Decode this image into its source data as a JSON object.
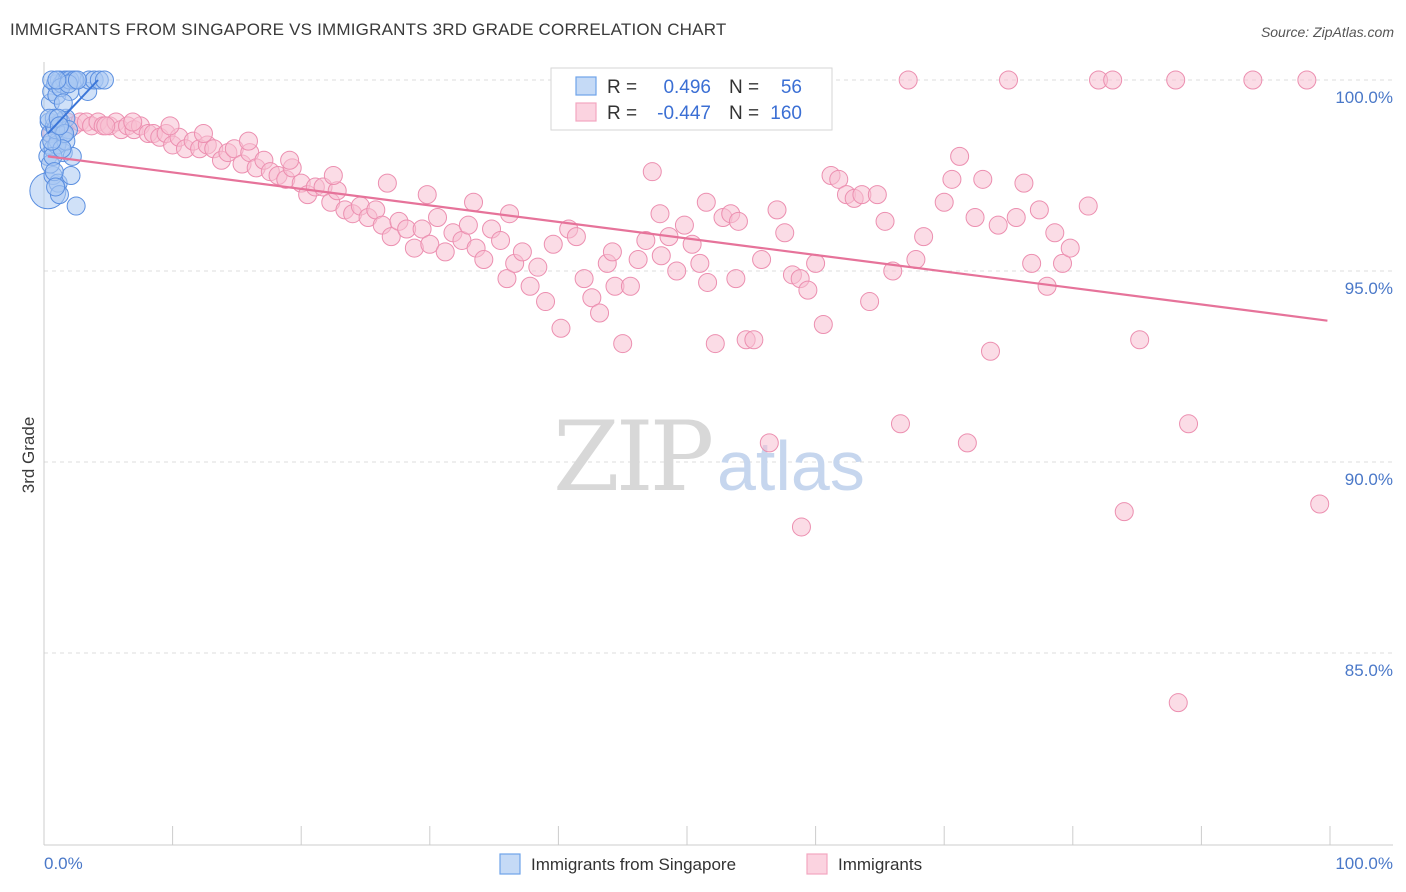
{
  "title": "IMMIGRANTS FROM SINGAPORE VS IMMIGRANTS 3RD GRADE CORRELATION CHART",
  "source": "Source: ZipAtlas.com",
  "watermark": {
    "part1": "ZIP",
    "part2": "atlas"
  },
  "colors": {
    "blue": "#6fa3ea",
    "blue_line": "#3a75d8",
    "pink": "#f3a6c0",
    "pink_line": "#e6739a",
    "tick": "#4a78c8"
  },
  "stats_box": {
    "rows": [
      {
        "r_label": "R =",
        "r_value": "0.496",
        "n_label": "N =",
        "n_value": "56"
      },
      {
        "r_label": "R =",
        "r_value": "-0.447",
        "n_label": "N =",
        "n_value": "160"
      }
    ]
  },
  "chart_data": {
    "type": "scatter",
    "title": "IMMIGRANTS FROM SINGAPORE VS IMMIGRANTS 3RD GRADE CORRELATION CHART",
    "xlabel": "",
    "ylabel": "3rd Grade",
    "xlim": [
      0,
      100
    ],
    "ylim": [
      80.7,
      100.7
    ],
    "x_tick_labels": [
      "0.0%",
      "100.0%"
    ],
    "y_ticks": [
      85,
      90,
      95,
      100
    ],
    "y_tick_labels": [
      "85.0%",
      "90.0%",
      "95.0%",
      "100.0%"
    ],
    "grid": true,
    "legend_position": "bottom-center",
    "series": [
      {
        "name": "Immigrants from Singapore",
        "color": "#6fa3ea",
        "trend": [
          [
            0.3,
            98.6
          ],
          [
            4.2,
            100.0
          ]
        ],
        "points": [
          [
            0.3,
            97.1,
            2
          ],
          [
            0.3,
            98.0,
            1
          ],
          [
            0.4,
            98.3,
            1
          ],
          [
            0.4,
            98.9,
            1
          ],
          [
            0.5,
            98.6,
            1
          ],
          [
            0.5,
            99.4,
            1
          ],
          [
            0.6,
            99.7,
            1
          ],
          [
            0.7,
            97.5,
            1
          ],
          [
            0.7,
            98.2,
            1
          ],
          [
            0.8,
            98.8,
            1
          ],
          [
            0.9,
            99.9,
            1
          ],
          [
            1.0,
            99.6,
            1
          ],
          [
            1.1,
            98.4,
            1
          ],
          [
            1.1,
            97.3,
            1
          ],
          [
            1.2,
            100.0,
            1
          ],
          [
            1.3,
            98.9,
            1
          ],
          [
            1.4,
            99.9,
            1
          ],
          [
            1.5,
            98.1,
            1
          ],
          [
            1.5,
            98.6,
            1
          ],
          [
            1.6,
            100.0,
            1
          ],
          [
            1.7,
            99.0,
            1
          ],
          [
            1.8,
            100.0,
            1
          ],
          [
            1.9,
            98.7,
            1
          ],
          [
            2.0,
            99.7,
            1
          ],
          [
            2.1,
            97.5,
            1
          ],
          [
            2.2,
            98.0,
            1
          ],
          [
            2.3,
            100.0,
            1
          ],
          [
            2.5,
            96.7,
            1
          ],
          [
            3.4,
            99.7,
            1
          ],
          [
            3.5,
            100.0,
            1
          ],
          [
            3.9,
            100.0,
            1
          ],
          [
            4.3,
            100.0,
            1
          ],
          [
            4.7,
            100.0,
            1
          ],
          [
            0.6,
            100.0,
            1
          ],
          [
            0.8,
            99.0,
            1
          ],
          [
            1.0,
            98.3,
            1
          ],
          [
            1.2,
            97.0,
            1
          ],
          [
            0.5,
            97.8,
            1
          ],
          [
            1.7,
            98.4,
            1
          ],
          [
            0.9,
            98.7,
            1
          ],
          [
            1.3,
            99.8,
            1
          ],
          [
            2.0,
            100.0,
            1
          ],
          [
            0.4,
            99.0,
            1
          ],
          [
            1.5,
            99.4,
            1
          ],
          [
            0.7,
            98.0,
            1
          ],
          [
            1.1,
            99.0,
            1
          ],
          [
            1.6,
            98.6,
            1
          ],
          [
            0.8,
            97.6,
            1
          ],
          [
            1.4,
            98.2,
            1
          ],
          [
            2.4,
            100.0,
            1
          ],
          [
            0.6,
            98.4,
            1
          ],
          [
            1.9,
            99.9,
            1
          ],
          [
            1.2,
            98.8,
            1
          ],
          [
            2.6,
            100.0,
            1
          ],
          [
            0.9,
            97.2,
            1
          ],
          [
            1.0,
            100.0,
            1
          ]
        ]
      },
      {
        "name": "Immigrants",
        "color": "#f3a6c0",
        "trend": [
          [
            0.3,
            98.0
          ],
          [
            99.8,
            93.7
          ]
        ],
        "points": [
          [
            0.6,
            98.6,
            1
          ],
          [
            1.0,
            98.8,
            1
          ],
          [
            1.4,
            98.7,
            1
          ],
          [
            1.8,
            98.9,
            1
          ],
          [
            2.3,
            98.8,
            1
          ],
          [
            2.8,
            98.9,
            1
          ],
          [
            3.3,
            98.9,
            1
          ],
          [
            3.7,
            98.8,
            1
          ],
          [
            4.2,
            98.9,
            1
          ],
          [
            4.6,
            98.8,
            1
          ],
          [
            5.1,
            98.8,
            1
          ],
          [
            5.6,
            98.9,
            1
          ],
          [
            6.0,
            98.7,
            1
          ],
          [
            6.5,
            98.8,
            1
          ],
          [
            7.0,
            98.7,
            1
          ],
          [
            7.5,
            98.8,
            1
          ],
          [
            8.1,
            98.6,
            1
          ],
          [
            8.5,
            98.6,
            1
          ],
          [
            9.0,
            98.5,
            1
          ],
          [
            9.5,
            98.6,
            1
          ],
          [
            10.0,
            98.3,
            1
          ],
          [
            10.5,
            98.5,
            1
          ],
          [
            11.0,
            98.2,
            1
          ],
          [
            11.6,
            98.4,
            1
          ],
          [
            12.1,
            98.2,
            1
          ],
          [
            12.7,
            98.3,
            1
          ],
          [
            13.2,
            98.2,
            1
          ],
          [
            13.8,
            97.9,
            1
          ],
          [
            14.3,
            98.1,
            1
          ],
          [
            14.8,
            98.2,
            1
          ],
          [
            15.4,
            97.8,
            1
          ],
          [
            16.0,
            98.1,
            1
          ],
          [
            16.5,
            97.7,
            1
          ],
          [
            17.1,
            97.9,
            1
          ],
          [
            17.6,
            97.6,
            1
          ],
          [
            18.2,
            97.5,
            1
          ],
          [
            18.8,
            97.4,
            1
          ],
          [
            19.3,
            97.7,
            1
          ],
          [
            20.0,
            97.3,
            1
          ],
          [
            20.5,
            97.0,
            1
          ],
          [
            21.1,
            97.2,
            1
          ],
          [
            21.7,
            97.2,
            1
          ],
          [
            22.3,
            96.8,
            1
          ],
          [
            22.8,
            97.1,
            1
          ],
          [
            23.4,
            96.6,
            1
          ],
          [
            24.0,
            96.5,
            1
          ],
          [
            24.6,
            96.7,
            1
          ],
          [
            25.2,
            96.4,
            1
          ],
          [
            25.8,
            96.6,
            1
          ],
          [
            26.3,
            96.2,
            1
          ],
          [
            27.0,
            95.9,
            1
          ],
          [
            27.6,
            96.3,
            1
          ],
          [
            28.2,
            96.1,
            1
          ],
          [
            28.8,
            95.6,
            1
          ],
          [
            29.4,
            96.1,
            1
          ],
          [
            30.0,
            95.7,
            1
          ],
          [
            30.6,
            96.4,
            1
          ],
          [
            31.2,
            95.5,
            1
          ],
          [
            31.8,
            96.0,
            1
          ],
          [
            32.5,
            95.8,
            1
          ],
          [
            33.0,
            96.2,
            1
          ],
          [
            33.6,
            95.6,
            1
          ],
          [
            34.2,
            95.3,
            1
          ],
          [
            34.8,
            96.1,
            1
          ],
          [
            35.5,
            95.8,
            1
          ],
          [
            36.0,
            94.8,
            1
          ],
          [
            36.6,
            95.2,
            1
          ],
          [
            37.2,
            95.5,
            1
          ],
          [
            37.8,
            94.6,
            1
          ],
          [
            38.4,
            95.1,
            1
          ],
          [
            39.0,
            94.2,
            1
          ],
          [
            39.6,
            95.7,
            1
          ],
          [
            40.2,
            93.5,
            1
          ],
          [
            40.8,
            96.1,
            1
          ],
          [
            41.4,
            95.9,
            1
          ],
          [
            42.0,
            94.8,
            1
          ],
          [
            42.6,
            94.3,
            1
          ],
          [
            43.2,
            93.9,
            1
          ],
          [
            43.8,
            95.2,
            1
          ],
          [
            44.4,
            94.6,
            1
          ],
          [
            45.0,
            93.1,
            1
          ],
          [
            45.6,
            94.6,
            1
          ],
          [
            46.2,
            95.3,
            1
          ],
          [
            46.8,
            95.8,
            1
          ],
          [
            47.3,
            97.6,
            1
          ],
          [
            48.0,
            95.4,
            1
          ],
          [
            48.6,
            95.9,
            1
          ],
          [
            49.2,
            95.0,
            1
          ],
          [
            49.8,
            96.2,
            1
          ],
          [
            50.4,
            95.7,
            1
          ],
          [
            51.0,
            95.2,
            1
          ],
          [
            51.6,
            94.7,
            1
          ],
          [
            52.2,
            93.1,
            1
          ],
          [
            52.8,
            96.4,
            1
          ],
          [
            53.4,
            96.5,
            1
          ],
          [
            54.0,
            96.3,
            1
          ],
          [
            54.6,
            93.2,
            1
          ],
          [
            55.2,
            93.2,
            1
          ],
          [
            55.8,
            95.3,
            1
          ],
          [
            56.4,
            90.5,
            1
          ],
          [
            57.0,
            96.6,
            1
          ],
          [
            57.6,
            96.0,
            1
          ],
          [
            58.2,
            94.9,
            1
          ],
          [
            58.8,
            94.8,
            1
          ],
          [
            59.4,
            94.5,
            1
          ],
          [
            60.0,
            95.2,
            1
          ],
          [
            60.6,
            93.6,
            1
          ],
          [
            61.2,
            97.5,
            1
          ],
          [
            61.8,
            97.4,
            1
          ],
          [
            62.4,
            97.0,
            1
          ],
          [
            63.0,
            96.9,
            1
          ],
          [
            63.6,
            97.0,
            1
          ],
          [
            64.2,
            94.2,
            1
          ],
          [
            64.8,
            97.0,
            1
          ],
          [
            65.4,
            96.3,
            1
          ],
          [
            66.0,
            95.0,
            1
          ],
          [
            66.6,
            91.0,
            1
          ],
          [
            67.2,
            100.0,
            1
          ],
          [
            67.8,
            95.3,
            1
          ],
          [
            68.4,
            95.9,
            1
          ],
          [
            70.0,
            96.8,
            1
          ],
          [
            70.6,
            97.4,
            1
          ],
          [
            71.2,
            98.0,
            1
          ],
          [
            71.8,
            90.5,
            1
          ],
          [
            72.4,
            96.4,
            1
          ],
          [
            73.0,
            97.4,
            1
          ],
          [
            73.6,
            92.9,
            1
          ],
          [
            74.2,
            96.2,
            1
          ],
          [
            75.0,
            100.0,
            1
          ],
          [
            75.6,
            96.4,
            1
          ],
          [
            76.2,
            97.3,
            1
          ],
          [
            76.8,
            95.2,
            1
          ],
          [
            77.4,
            96.6,
            1
          ],
          [
            78.0,
            94.6,
            1
          ],
          [
            78.6,
            96.0,
            1
          ],
          [
            79.2,
            95.2,
            1
          ],
          [
            79.8,
            95.6,
            1
          ],
          [
            81.2,
            96.7,
            1
          ],
          [
            82.0,
            100.0,
            1
          ],
          [
            83.1,
            100.0,
            1
          ],
          [
            84.0,
            88.7,
            1
          ],
          [
            85.2,
            93.2,
            1
          ],
          [
            88.0,
            100.0,
            1
          ],
          [
            88.2,
            83.7,
            1
          ],
          [
            89.0,
            91.0,
            1
          ],
          [
            94.0,
            100.0,
            1
          ],
          [
            98.2,
            100.0,
            1
          ],
          [
            99.2,
            88.9,
            1
          ],
          [
            58.9,
            88.3,
            1
          ],
          [
            60.1,
            99.1,
            1
          ],
          [
            51.5,
            96.8,
            1
          ],
          [
            53.8,
            94.8,
            1
          ],
          [
            47.9,
            96.5,
            1
          ],
          [
            44.2,
            95.5,
            1
          ],
          [
            36.2,
            96.5,
            1
          ],
          [
            33.4,
            96.8,
            1
          ],
          [
            29.8,
            97.0,
            1
          ],
          [
            26.7,
            97.3,
            1
          ],
          [
            22.5,
            97.5,
            1
          ],
          [
            19.1,
            97.9,
            1
          ],
          [
            15.9,
            98.4,
            1
          ],
          [
            12.4,
            98.6,
            1
          ],
          [
            9.8,
            98.8,
            1
          ],
          [
            6.9,
            98.9,
            1
          ],
          [
            4.8,
            98.8,
            1
          ]
        ]
      }
    ]
  }
}
